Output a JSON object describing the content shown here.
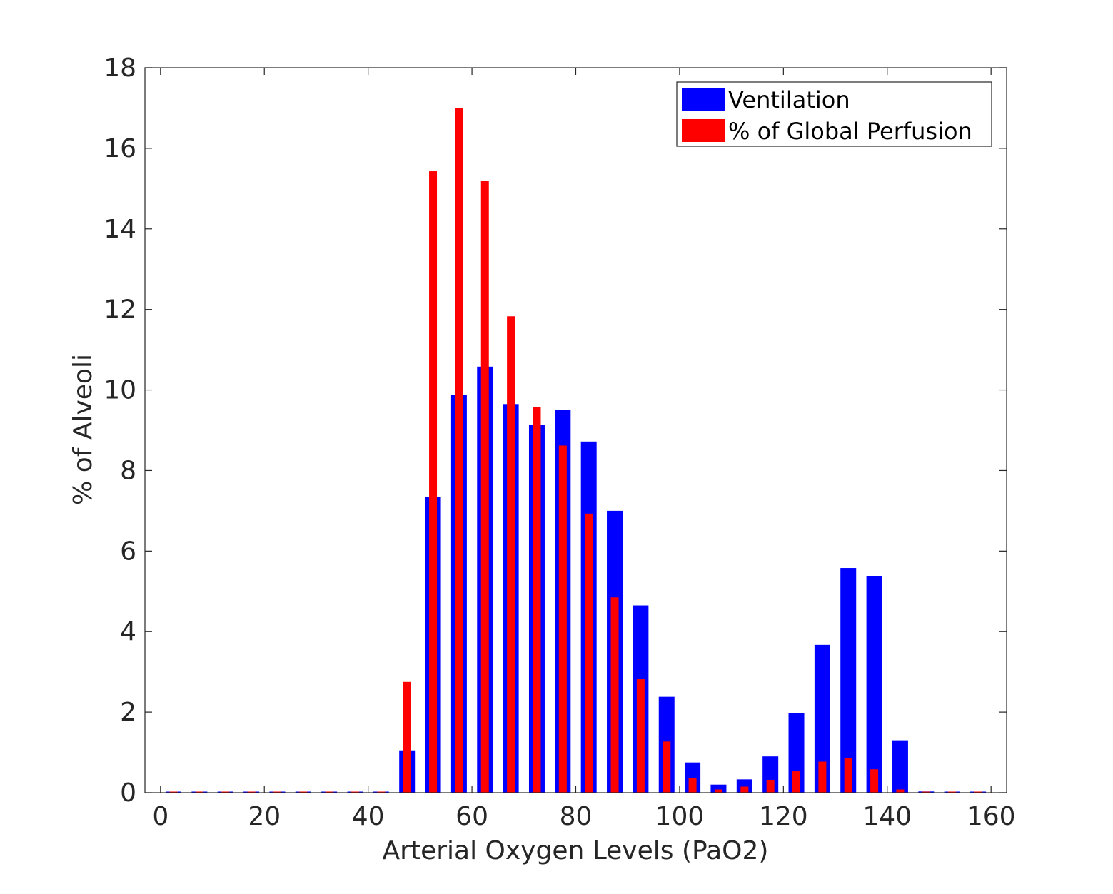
{
  "chart_data": {
    "type": "bar",
    "xlabel": "Arterial Oxygen Levels (PaO2)",
    "ylabel": "% of Alveoli",
    "xlim": [
      -3,
      163
    ],
    "ylim": [
      0,
      18
    ],
    "xticks": [
      0,
      20,
      40,
      60,
      80,
      100,
      120,
      140,
      160
    ],
    "yticks": [
      0,
      2,
      4,
      6,
      8,
      10,
      12,
      14,
      16,
      18
    ],
    "grid": false,
    "legend_position": "top-right",
    "x": [
      2.5,
      7.5,
      12.5,
      17.5,
      22.5,
      27.5,
      32.5,
      37.5,
      42.5,
      47.5,
      52.5,
      57.5,
      62.5,
      67.5,
      72.5,
      77.5,
      82.5,
      87.5,
      92.5,
      97.5,
      102.5,
      107.5,
      112.5,
      117.5,
      122.5,
      127.5,
      132.5,
      137.5,
      142.5,
      147.5,
      152.5,
      157.5
    ],
    "series": [
      {
        "name": "Ventilation",
        "color": "#0000ff",
        "values": [
          0,
          0,
          0,
          0,
          0,
          0,
          0,
          0,
          0,
          1.05,
          7.35,
          9.87,
          10.58,
          9.65,
          9.13,
          9.5,
          8.72,
          7.0,
          4.65,
          2.38,
          0.75,
          0.2,
          0.33,
          0.9,
          1.97,
          3.67,
          5.58,
          5.38,
          1.3,
          0.03,
          0,
          0
        ]
      },
      {
        "name": "% of Global Perfusion",
        "color": "#ff0000",
        "values": [
          0,
          0,
          0,
          0,
          0,
          0,
          0,
          0,
          0,
          2.75,
          15.43,
          17.0,
          15.2,
          11.83,
          9.58,
          8.62,
          6.93,
          4.85,
          2.83,
          1.27,
          0.37,
          0.08,
          0.15,
          0.32,
          0.53,
          0.77,
          0.85,
          0.58,
          0.08,
          0,
          0,
          0
        ]
      }
    ]
  }
}
